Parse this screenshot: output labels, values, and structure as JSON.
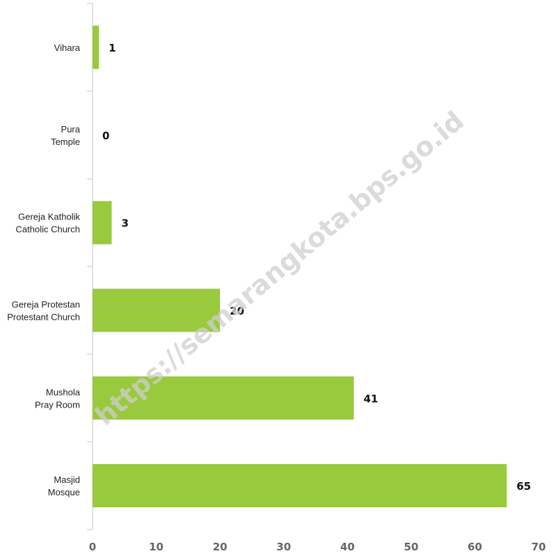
{
  "watermark": "https://semarangkota.bps.go.id",
  "chart_data": {
    "type": "bar",
    "orientation": "horizontal",
    "categories": [
      [
        "Vihara"
      ],
      [
        "Pura",
        "Temple"
      ],
      [
        "Gereja Katholik",
        "Catholic Church"
      ],
      [
        "Gereja Protestan",
        "Protestant Church"
      ],
      [
        "Mushola",
        "Pray Room"
      ],
      [
        "Masjid",
        "Mosque"
      ]
    ],
    "values": [
      1,
      0,
      3,
      20,
      41,
      65
    ],
    "value_labels": [
      "1",
      "0",
      "3",
      "20",
      "41",
      "65"
    ],
    "xlim": [
      0,
      70
    ],
    "xticks": [
      0,
      10,
      20,
      30,
      40,
      50,
      60,
      70
    ],
    "xtick_labels": [
      "0",
      "10",
      "20",
      "30",
      "40",
      "50",
      "60",
      "70"
    ],
    "bar_color": "#99c93c",
    "grid": false,
    "title": "",
    "xlabel": "",
    "ylabel": ""
  }
}
